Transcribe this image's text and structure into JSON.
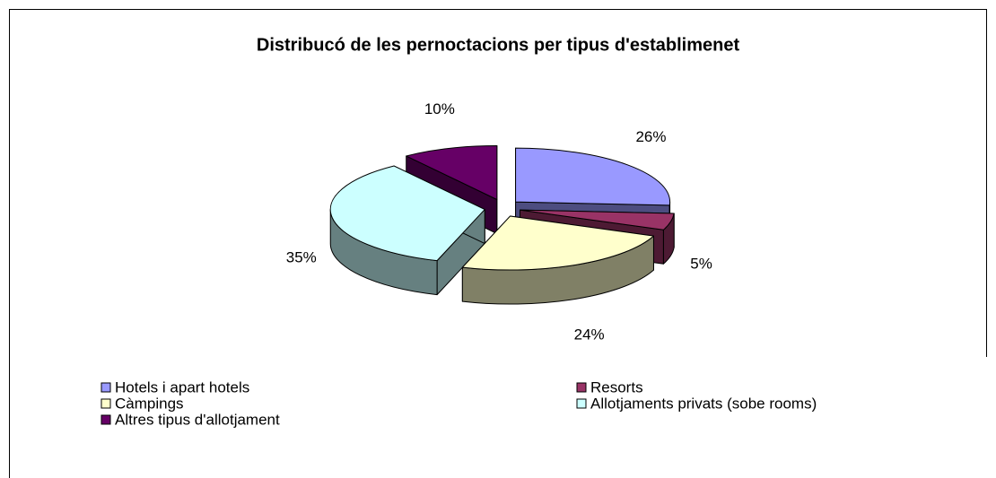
{
  "chart_data": {
    "type": "pie3d",
    "title": "Distribucó de les pernoctacions per tipus d'establimenet",
    "categories": [
      "Hotels i apart hotels",
      "Resorts",
      "Càmpings",
      "Allotjaments privats (sobe rooms)",
      "Altres tipus d'allotjament"
    ],
    "values": [
      26,
      5,
      24,
      35,
      10
    ],
    "value_labels": [
      "26%",
      "5%",
      "24%",
      "35%",
      "10%"
    ],
    "colors": [
      "#9999ff",
      "#993366",
      "#ffffcc",
      "#ccffff",
      "#660066"
    ],
    "legend": "bottom"
  }
}
